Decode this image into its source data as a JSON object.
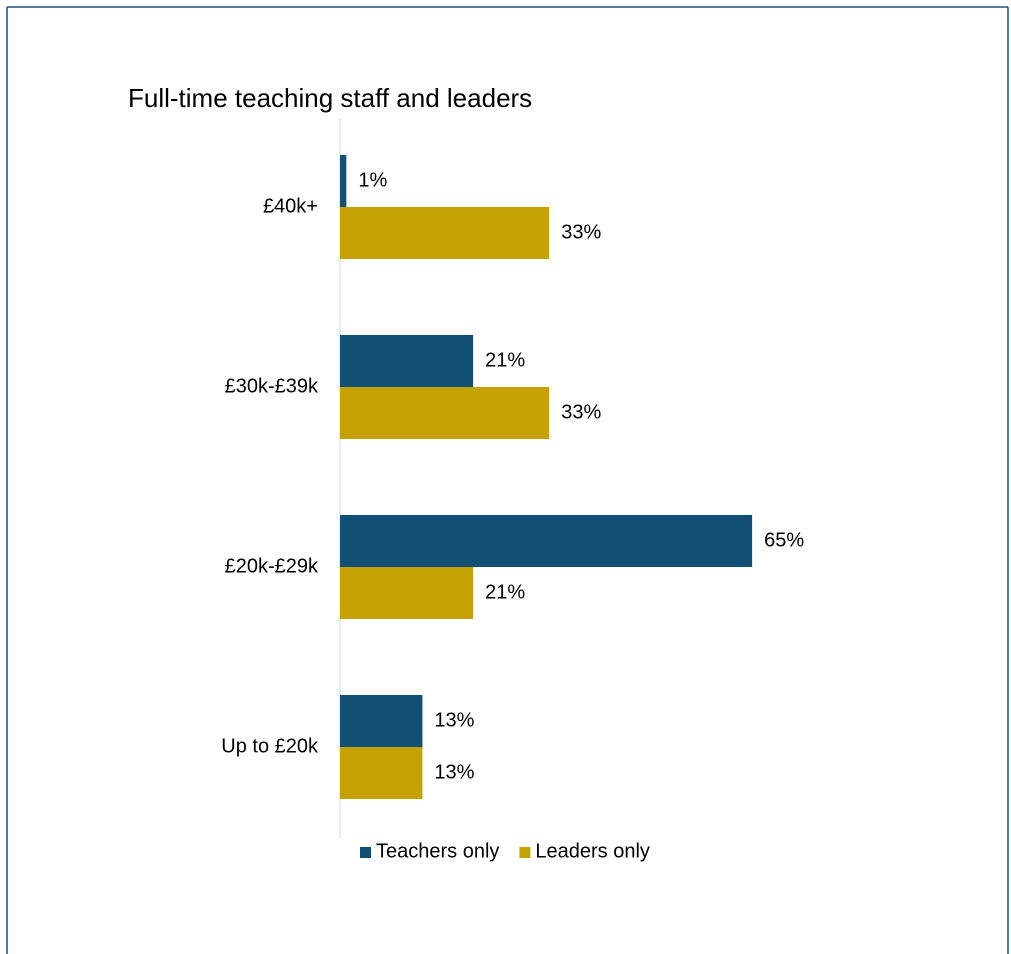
{
  "chart_data": {
    "type": "bar",
    "orientation": "horizontal",
    "title": "Full-time teaching staff and leaders",
    "categories": [
      "£40k+",
      "£30k-£39k",
      "£20k-£29k",
      "Up to £20k"
    ],
    "series": [
      {
        "name": "Teachers only",
        "color": "#124f74",
        "values": [
          1,
          21,
          65,
          13
        ],
        "value_labels": [
          "1%",
          "21%",
          "65%",
          "13%"
        ]
      },
      {
        "name": "Leaders only",
        "color": "#c4a204",
        "values": [
          33,
          33,
          21,
          13
        ],
        "value_labels": [
          "33%",
          "33%",
          "21%",
          "13%"
        ]
      }
    ],
    "xlim": [
      0,
      100
    ],
    "legend": "bottom"
  }
}
